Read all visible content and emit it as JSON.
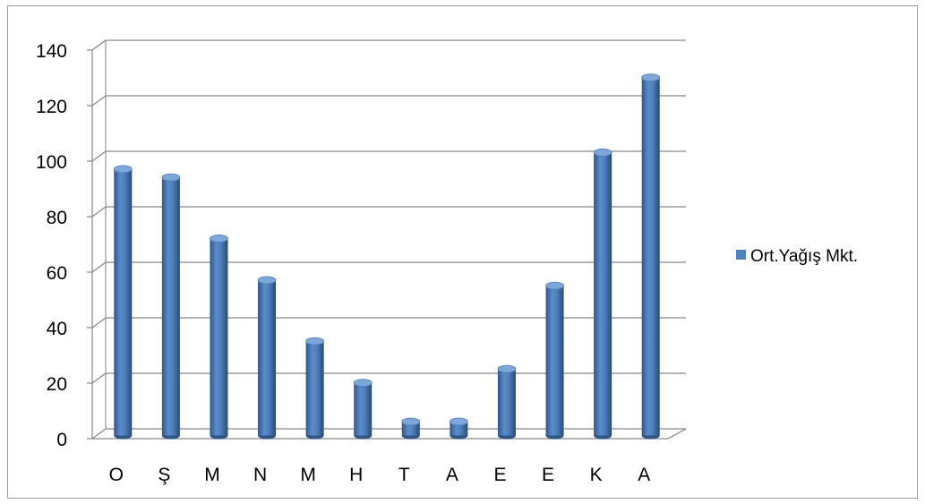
{
  "chart_data": {
    "type": "bar",
    "style": "3d-cylinder",
    "categories": [
      "O",
      "Ş",
      "M",
      "N",
      "M",
      "H",
      "T",
      "A",
      "E",
      "E",
      "K",
      "A"
    ],
    "series": [
      {
        "name": "Ort.Yağış Mkt.",
        "color": "#4F81BD",
        "values": [
          96,
          93,
          71,
          56,
          34,
          19,
          5,
          5,
          24,
          54,
          102,
          129
        ]
      }
    ],
    "ylim": [
      0,
      140
    ],
    "yticks": [
      0,
      20,
      40,
      60,
      80,
      100,
      120,
      140
    ],
    "grid": true,
    "legend": "right",
    "title": "",
    "xlabel": "",
    "ylabel": ""
  }
}
